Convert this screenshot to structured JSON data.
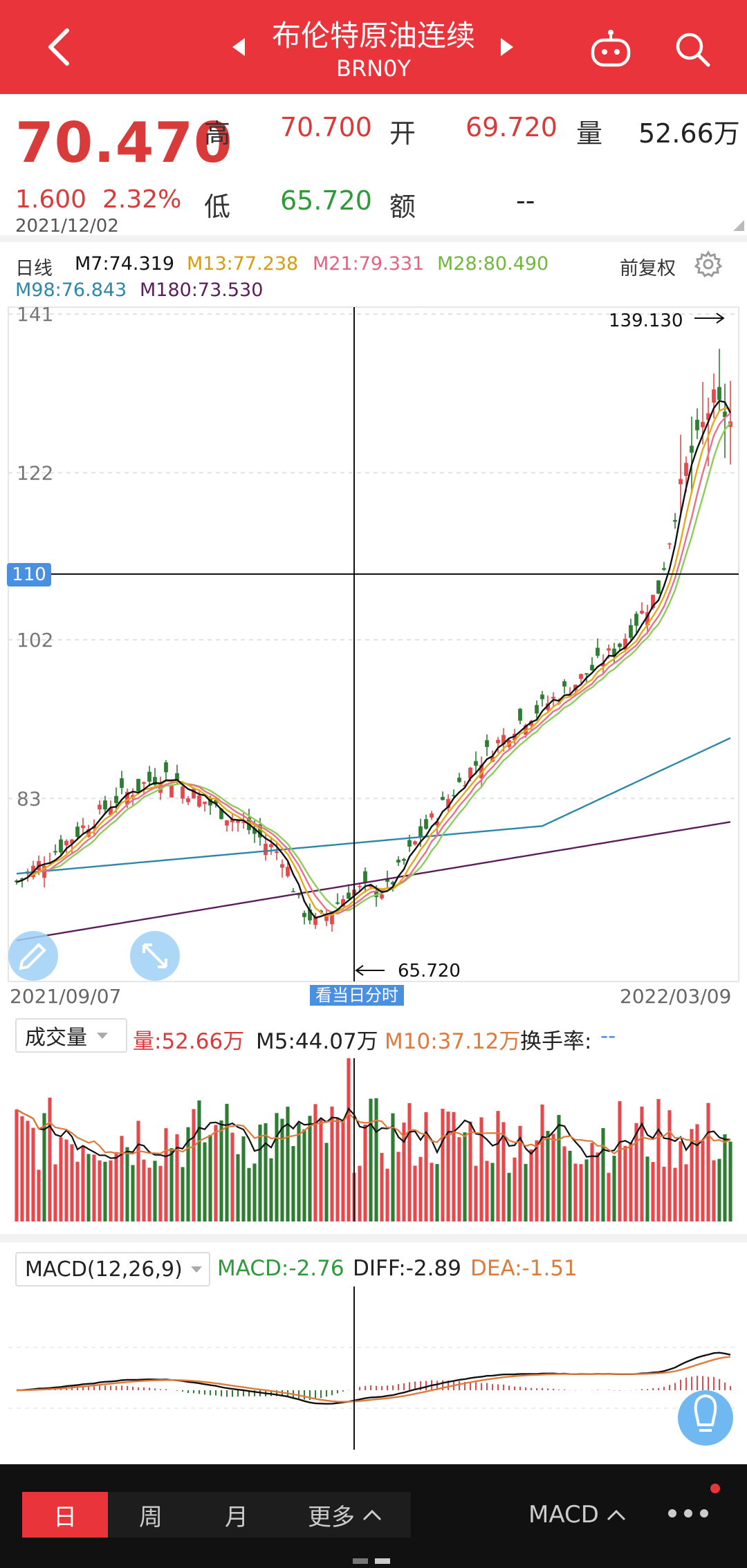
{
  "header": {
    "title": "布伦特原油连续",
    "subtitle": "BRN0Y"
  },
  "quote": {
    "price": "70.470",
    "change": "1.600",
    "change_pct": "2.32%",
    "date": "2021/12/02",
    "high_label": "高",
    "high": "70.700",
    "open_label": "开",
    "open": "69.720",
    "volume_label": "量",
    "volume": "52.66万",
    "low_label": "低",
    "low": "65.720",
    "amount_label": "额",
    "amount": "--"
  },
  "ma_legend": {
    "period": "日线",
    "m7": "M7:74.319",
    "m13": "M13:77.238",
    "m21": "M21:79.331",
    "m28": "M28:80.490",
    "m98": "M98:76.843",
    "m180": "M180:73.530",
    "adjust": "前复权"
  },
  "colors": {
    "up": "#e8484c",
    "down": "#2e7d32",
    "m7": "#111111",
    "m13": "#e6a817",
    "m21": "#e8708a",
    "m28": "#8ccd5a",
    "m98": "#2f87a8",
    "m180": "#5a1e5a",
    "accent": "#e8343a",
    "crosshair_label": "#4a90e2"
  },
  "chart_data": [
    {
      "type": "candlestick",
      "y_ticks": [
        "141",
        "122",
        "102",
        "83"
      ],
      "ylim": [
        62,
        141
      ],
      "crosshair_value": "110",
      "max_marker": "139.130",
      "min_marker": "65.720",
      "x_start": "2021/09/07",
      "x_end": "2022/03/09",
      "crosshair_button": "看当日分时",
      "note": ""
    },
    {
      "type": "bar",
      "selector": "成交量",
      "volume": "量:52.66万",
      "m5": "M5:44.07万",
      "m10": "M10:37.12万",
      "turnover_label": "换手率:",
      "turnover": "--"
    },
    {
      "type": "bar",
      "selector": "MACD(12,26,9)",
      "macd": "MACD:-2.76",
      "diff": "DIFF:-2.89",
      "dea": "DEA:-1.51"
    }
  ],
  "tabs": {
    "day": "日",
    "week": "周",
    "month": "月",
    "more": "更多",
    "indicator": "MACD"
  }
}
